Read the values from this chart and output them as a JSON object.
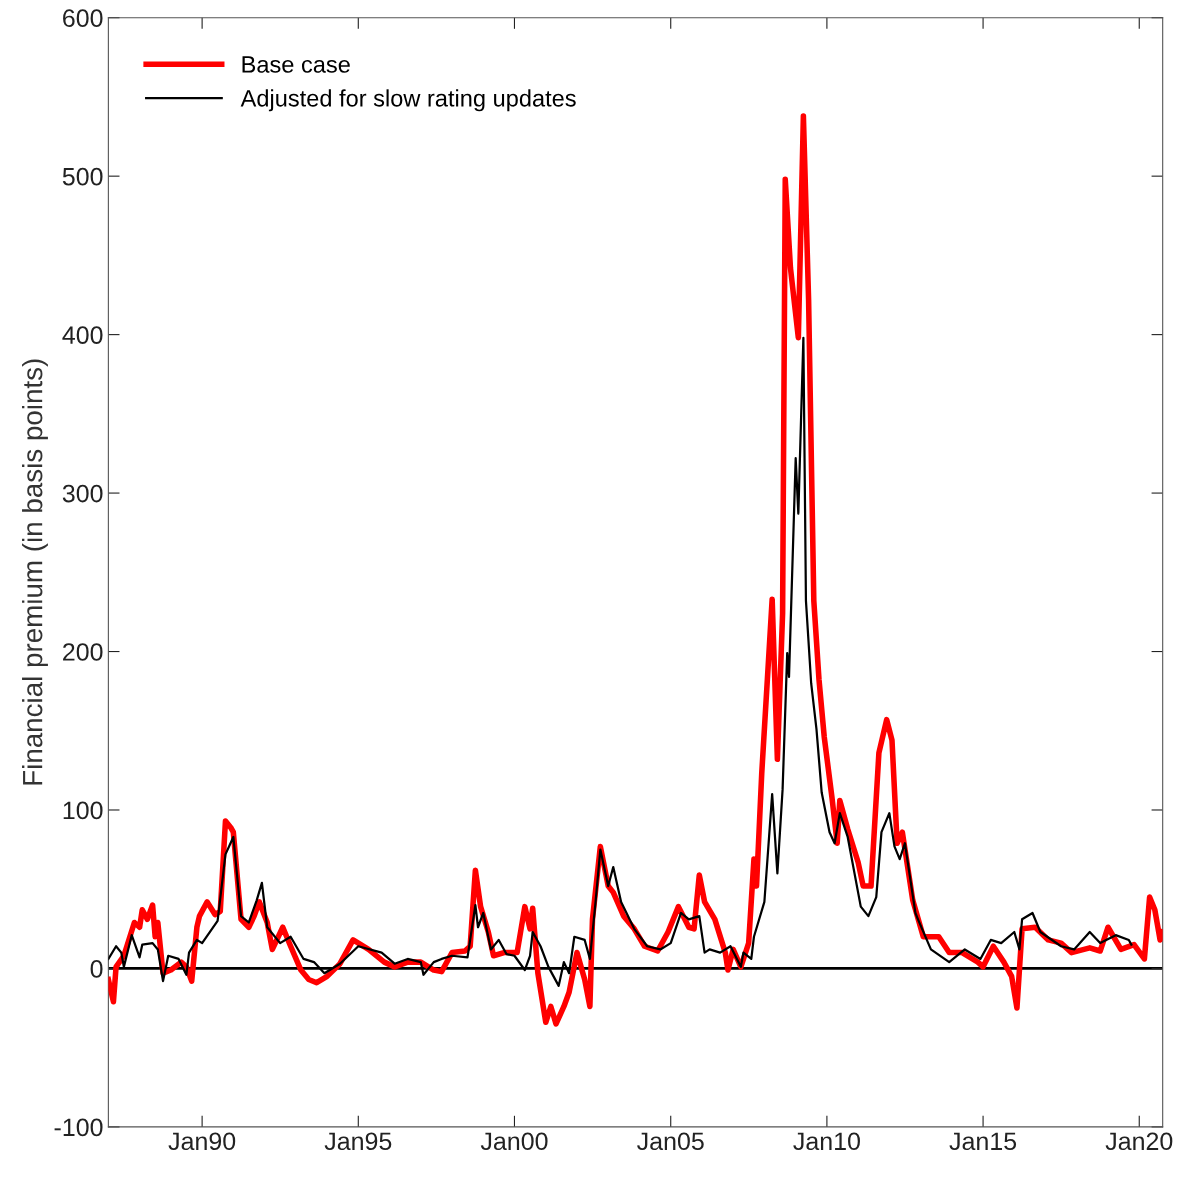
{
  "chart_data": {
    "type": "line",
    "ylabel": "Financial premium (in basis points)",
    "xlim": [
      "1987-01",
      "2020-10"
    ],
    "ylim": [
      -100,
      600
    ],
    "xticks": [
      {
        "value": "1990-01",
        "label": "Jan90"
      },
      {
        "value": "1995-01",
        "label": "Jan95"
      },
      {
        "value": "2000-01",
        "label": "Jan00"
      },
      {
        "value": "2005-01",
        "label": "Jan05"
      },
      {
        "value": "2010-01",
        "label": "Jan10"
      },
      {
        "value": "2015-01",
        "label": "Jan15"
      },
      {
        "value": "2020-01",
        "label": "Jan20"
      }
    ],
    "yticks": [
      -100,
      0,
      100,
      200,
      300,
      400,
      500,
      600
    ],
    "grid": false,
    "legend": "top left",
    "line_style": "solid",
    "marker": "none",
    "ref_lines": [
      {
        "axis": "y",
        "value": 0,
        "label": null,
        "color": "#000000",
        "line_style": "solid"
      }
    ],
    "series": [
      {
        "name": "Base case",
        "color": "#ff0000",
        "x": [
          "1987-01",
          "1987-03",
          "1987-04",
          "1987-07",
          "1987-11",
          "1988-01",
          "1988-02",
          "1988-04",
          "1988-06",
          "1988-07",
          "1988-08",
          "1988-10",
          "1989-01",
          "1989-05",
          "1989-07",
          "1989-09",
          "1989-11",
          "1989-12",
          "1990-03",
          "1990-06",
          "1990-08",
          "1990-10",
          "1990-12",
          "1991-01",
          "1991-04",
          "1991-07",
          "1991-09",
          "1991-11",
          "1992-02",
          "1992-04",
          "1992-08",
          "1992-11",
          "1993-03",
          "1993-06",
          "1993-09",
          "1994-01",
          "1994-06",
          "1994-11",
          "1995-05",
          "1995-11",
          "1996-03",
          "1996-08",
          "1997-01",
          "1997-06",
          "1997-09",
          "1998-01",
          "1998-06",
          "1998-08",
          "1998-10",
          "1998-12",
          "1999-03",
          "1999-05",
          "1999-09",
          "2000-02",
          "2000-05",
          "2000-07",
          "2000-08",
          "2000-10",
          "2001-01",
          "2001-03",
          "2001-05",
          "2001-08",
          "2001-10",
          "2002-01",
          "2002-04",
          "2002-06",
          "2002-07",
          "2002-10",
          "2003-01",
          "2003-03",
          "2003-07",
          "2003-11",
          "2004-03",
          "2004-08",
          "2004-12",
          "2005-04",
          "2005-08",
          "2005-10",
          "2005-12",
          "2006-02",
          "2006-06",
          "2006-10",
          "2006-11",
          "2007-01",
          "2007-04",
          "2007-07",
          "2007-09",
          "2007-10",
          "2007-12",
          "2008-04",
          "2008-06",
          "2008-08",
          "2008-09",
          "2008-11",
          "2009-02",
          "2009-04",
          "2009-06",
          "2009-08",
          "2009-10",
          "2009-12",
          "2010-03",
          "2010-05",
          "2010-06",
          "2010-09",
          "2011-01",
          "2011-03",
          "2011-06",
          "2011-09",
          "2011-12",
          "2012-02",
          "2012-04",
          "2012-06",
          "2012-10",
          "2013-02",
          "2013-08",
          "2013-12",
          "2014-05",
          "2014-11",
          "2015-01",
          "2015-05",
          "2015-09",
          "2015-12",
          "2016-02",
          "2016-04",
          "2016-09",
          "2017-02",
          "2017-07",
          "2017-11",
          "2018-06",
          "2018-10",
          "2019-01",
          "2019-06",
          "2019-11",
          "2020-03",
          "2020-05",
          "2020-07",
          "2020-09",
          "2020-10"
        ],
        "values": [
          -7,
          -21,
          1,
          8,
          29,
          26,
          37,
          31,
          40,
          20,
          29,
          -3,
          -1,
          4,
          1,
          -8,
          26,
          33,
          42,
          34,
          36,
          93,
          89,
          86,
          31,
          26,
          33,
          42,
          29,
          12,
          26,
          14,
          -1,
          -7,
          -9,
          -5,
          3,
          18,
          12,
          4,
          1,
          4,
          4,
          -1,
          -2,
          10,
          11,
          14,
          62,
          39,
          23,
          8,
          10,
          10,
          39,
          25,
          38,
          -3,
          -34,
          -24,
          -35,
          -24,
          -15,
          10,
          -7,
          -24,
          31,
          77,
          52,
          48,
          33,
          25,
          14,
          11,
          23,
          39,
          26,
          25,
          59,
          42,
          31,
          10,
          -1,
          12,
          1,
          16,
          69,
          52,
          123,
          233,
          132,
          224,
          498,
          442,
          398,
          538,
          422,
          232,
          182,
          146,
          108,
          79,
          106,
          88,
          67,
          52,
          52,
          136,
          157,
          144,
          79,
          86,
          43,
          20,
          20,
          10,
          10,
          4,
          1,
          14,
          4,
          -5,
          -25,
          25,
          26,
          18,
          16,
          10,
          13,
          11,
          26,
          12,
          15,
          6,
          45,
          37,
          18,
          23
        ]
      },
      {
        "name": "Adjusted for slow rating updates",
        "color": "#000000",
        "x": [
          "1987-01",
          "1987-04",
          "1987-06",
          "1987-07",
          "1987-10",
          "1988-01",
          "1988-02",
          "1988-06",
          "1988-08",
          "1988-10",
          "1988-12",
          "1989-04",
          "1989-07",
          "1989-08",
          "1989-11",
          "1990-01",
          "1990-07",
          "1990-10",
          "1991-01",
          "1991-04",
          "1991-07",
          "1991-10",
          "1991-12",
          "1992-02",
          "1992-07",
          "1992-11",
          "1993-04",
          "1993-08",
          "1993-12",
          "1994-06",
          "1995-01",
          "1995-10",
          "1996-03",
          "1996-08",
          "1997-01",
          "1997-02",
          "1997-06",
          "1997-09",
          "1998-01",
          "1998-07",
          "1998-10",
          "1998-11",
          "1999-01",
          "1999-04",
          "1999-07",
          "1999-10",
          "2000-01",
          "2000-05",
          "2000-07",
          "2000-08",
          "2000-11",
          "2001-02",
          "2001-06",
          "2001-08",
          "2001-10",
          "2001-12",
          "2002-04",
          "2002-06",
          "2002-08",
          "2002-10",
          "2003-01",
          "2003-03",
          "2003-06",
          "2003-11",
          "2004-04",
          "2004-09",
          "2005-01",
          "2005-05",
          "2005-08",
          "2005-12",
          "2006-02",
          "2006-04",
          "2006-08",
          "2006-12",
          "2007-04",
          "2007-05",
          "2007-08",
          "2007-09",
          "2008-01",
          "2008-04",
          "2008-06",
          "2008-08",
          "2008-09-24",
          "2008-10-15",
          "2009-01",
          "2009-02",
          "2009-04",
          "2009-05",
          "2009-07",
          "2009-09",
          "2009-11",
          "2010-02",
          "2010-04",
          "2010-06",
          "2010-09",
          "2011-02",
          "2011-05",
          "2011-08",
          "2011-10",
          "2012-01",
          "2012-03",
          "2012-05",
          "2012-07",
          "2012-11",
          "2012-12",
          "2013-05",
          "2013-12",
          "2014-06",
          "2014-12",
          "2015-04",
          "2015-08",
          "2016-01",
          "2016-03",
          "2016-04",
          "2016-08",
          "2016-11",
          "2017-07",
          "2017-12",
          "2018-06",
          "2018-10",
          "2019-04",
          "2019-09",
          "2019-10"
        ],
        "values": [
          6,
          14,
          10,
          1,
          21,
          7,
          15,
          16,
          12,
          -8,
          8,
          6,
          -4,
          10,
          18,
          16,
          30,
          72,
          83,
          33,
          29,
          43,
          54,
          26,
          16,
          20,
          6,
          4,
          -3,
          3,
          14,
          10,
          3,
          6,
          4,
          -4,
          4,
          6,
          8,
          7,
          40,
          26,
          35,
          12,
          18,
          9,
          8,
          -1,
          8,
          23,
          14,
          1,
          -11,
          4,
          -3,
          20,
          18,
          6,
          39,
          75,
          52,
          64,
          42,
          25,
          14,
          12,
          16,
          35,
          31,
          33,
          10,
          12,
          10,
          14,
          1,
          10,
          6,
          20,
          42,
          110,
          60,
          113,
          199,
          184,
          322,
          287,
          398,
          232,
          180,
          151,
          111,
          86,
          79,
          98,
          83,
          39,
          33,
          45,
          86,
          98,
          77,
          69,
          79,
          35,
          31,
          12,
          4,
          12,
          6,
          18,
          16,
          23,
          12,
          31,
          35,
          23,
          14,
          12,
          23,
          16,
          21,
          18,
          15
        ]
      }
    ]
  }
}
